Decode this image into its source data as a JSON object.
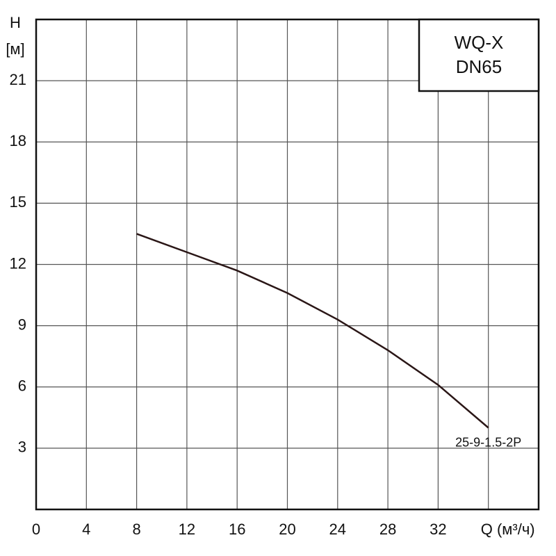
{
  "chart_data": {
    "type": "line",
    "title": "WQ-X",
    "subtitle": "DN65",
    "ylabel": "H",
    "ylabel_unit": "[м]",
    "x": [
      8,
      12,
      16,
      20,
      24,
      28,
      32,
      36
    ],
    "series": [
      {
        "name": "25-9-1.5-2P",
        "color": "#2a1616",
        "values": [
          13.5,
          12.6,
          11.7,
          10.6,
          9.3,
          7.8,
          6.1,
          4.0
        ]
      }
    ],
    "xlim": [
      0,
      40
    ],
    "xticks": [
      0,
      4,
      8,
      12,
      16,
      20,
      24,
      28,
      32,
      {
        "value": 36,
        "label": "Q (м³/ч)"
      }
    ],
    "ylim": [
      0,
      24
    ],
    "yticks": [
      3,
      6,
      9,
      12,
      15,
      18,
      21
    ],
    "grid": true
  }
}
